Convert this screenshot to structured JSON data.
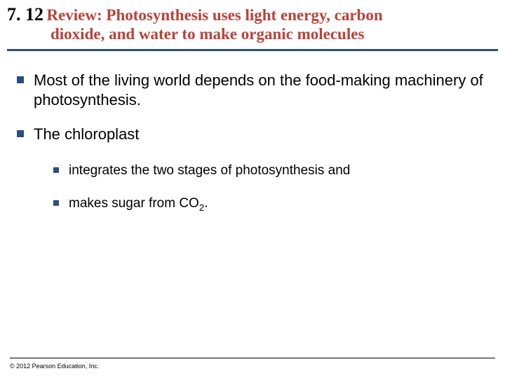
{
  "colors": {
    "heading_accent": "#b8423a",
    "rule": "#2a4e82",
    "bullet": "#2a4e82"
  },
  "heading": {
    "number": "7. 12",
    "title_part1": "Review: Photosynthesis uses light energy, carbon",
    "title_part2": "dioxide, and water to make organic molecules"
  },
  "bullets": [
    {
      "text": "Most of the living world depends on the food-making machinery of photosynthesis."
    },
    {
      "text": "The chloroplast",
      "children": [
        {
          "text": "integrates the two stages of photosynthesis and"
        },
        {
          "text_pre": "makes sugar from CO",
          "sub": "2",
          "text_post": "."
        }
      ]
    }
  ],
  "copyright": "© 2012 Pearson Education, Inc."
}
